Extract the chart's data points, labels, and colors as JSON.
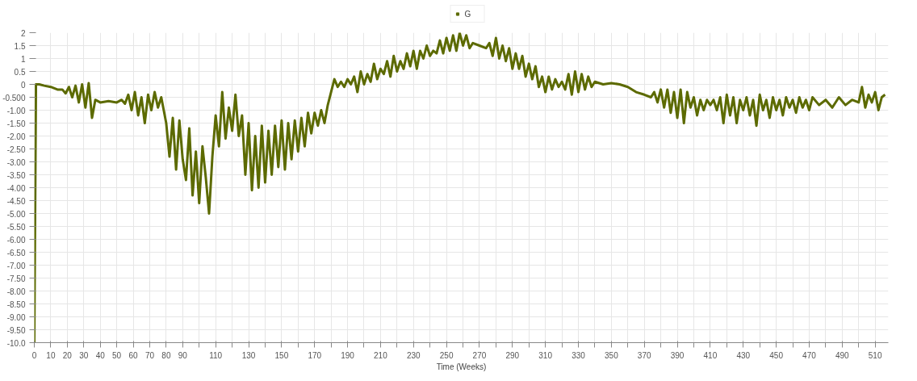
{
  "chart_data": {
    "type": "line",
    "xlabel": "Time (Weeks)",
    "xlim": [
      0,
      518
    ],
    "ylim": [
      -10,
      2
    ],
    "xticks": [
      0,
      10,
      20,
      30,
      40,
      50,
      60,
      70,
      80,
      90,
      {
        "value": 100,
        "label": null
      },
      110,
      {
        "value": 120,
        "label": null
      },
      130,
      {
        "value": 140,
        "label": null
      },
      150,
      {
        "value": 160,
        "label": null
      },
      170,
      {
        "value": 180,
        "label": null
      },
      190,
      {
        "value": 200,
        "label": null
      },
      210,
      {
        "value": 220,
        "label": null
      },
      230,
      {
        "value": 240,
        "label": null
      },
      250,
      {
        "value": 260,
        "label": null
      },
      270,
      {
        "value": 280,
        "label": null
      },
      290,
      {
        "value": 300,
        "label": null
      },
      310,
      {
        "value": 320,
        "label": null
      },
      330,
      {
        "value": 340,
        "label": null
      },
      350,
      {
        "value": 360,
        "label": null
      },
      370,
      {
        "value": 380,
        "label": null
      },
      390,
      {
        "value": 400,
        "label": null
      },
      410,
      {
        "value": 420,
        "label": null
      },
      430,
      {
        "value": 440,
        "label": null
      },
      450,
      {
        "value": 460,
        "label": null
      },
      470,
      {
        "value": 480,
        "label": null
      },
      490,
      {
        "value": 500,
        "label": null
      },
      510
    ],
    "yticks": [
      2,
      1.5,
      1,
      0.5,
      0,
      {
        "value": -0.5,
        "label": "-0.500"
      },
      {
        "value": -1,
        "label": "-1.00"
      },
      {
        "value": -1.5,
        "label": "-1.50"
      },
      {
        "value": -2,
        "label": "-2.00"
      },
      {
        "value": -2.5,
        "label": "-2.50"
      },
      {
        "value": -3,
        "label": "-3.00"
      },
      {
        "value": -3.5,
        "label": "-3.50"
      },
      {
        "value": -4,
        "label": "-4.00"
      },
      {
        "value": -4.5,
        "label": "-4.50"
      },
      {
        "value": -5,
        "label": "-5.00"
      },
      {
        "value": -5.5,
        "label": "-5.50"
      },
      {
        "value": -6,
        "label": "-6.00"
      },
      {
        "value": -6.5,
        "label": "-6.50"
      },
      {
        "value": -7,
        "label": "-7.00"
      },
      {
        "value": -7.5,
        "label": "-7.50"
      },
      {
        "value": -8,
        "label": "-8.00"
      },
      {
        "value": -8.5,
        "label": "-8.50"
      },
      {
        "value": -9,
        "label": "-9.00"
      },
      {
        "value": -9.5,
        "label": "-9.50"
      },
      {
        "value": -10,
        "label": "-10.0"
      }
    ],
    "grid": true,
    "legend": "top",
    "marker": "none",
    "line_style": "solid",
    "series": [
      {
        "name": "G",
        "color": "#5c6a00",
        "x": [
          0,
          1,
          3,
          6,
          10,
          14,
          17,
          19,
          21,
          23,
          25,
          27,
          29,
          31,
          33,
          35,
          37,
          40,
          45,
          50,
          53,
          55,
          57,
          59,
          61,
          63,
          65,
          67,
          69,
          71,
          73,
          75,
          77,
          80,
          82,
          84,
          86,
          88,
          90,
          92,
          94,
          96,
          98,
          100,
          102,
          104,
          106,
          108,
          110,
          112,
          114,
          116,
          118,
          120,
          122,
          124,
          126,
          128,
          130,
          132,
          134,
          136,
          138,
          140,
          142,
          144,
          146,
          148,
          150,
          152,
          154,
          156,
          158,
          160,
          162,
          164,
          166,
          168,
          170,
          172,
          174,
          176,
          178,
          180,
          182,
          184,
          186,
          188,
          190,
          192,
          194,
          196,
          198,
          200,
          202,
          204,
          206,
          208,
          210,
          212,
          214,
          216,
          218,
          220,
          222,
          224,
          226,
          228,
          230,
          232,
          234,
          236,
          238,
          240,
          242,
          244,
          246,
          248,
          250,
          252,
          254,
          256,
          258,
          260,
          262,
          264,
          266,
          270,
          274,
          276,
          278,
          280,
          282,
          284,
          286,
          288,
          290,
          292,
          294,
          296,
          298,
          300,
          302,
          304,
          306,
          308,
          310,
          312,
          314,
          316,
          318,
          320,
          322,
          324,
          326,
          328,
          330,
          332,
          334,
          336,
          338,
          340,
          345,
          350,
          355,
          360,
          365,
          370,
          374,
          376,
          378,
          380,
          382,
          384,
          386,
          388,
          390,
          392,
          394,
          396,
          398,
          400,
          402,
          404,
          406,
          408,
          410,
          412,
          414,
          416,
          418,
          420,
          422,
          424,
          426,
          428,
          430,
          432,
          434,
          436,
          438,
          440,
          442,
          444,
          446,
          448,
          450,
          452,
          454,
          456,
          458,
          460,
          462,
          464,
          466,
          468,
          470,
          472,
          476,
          480,
          484,
          488,
          492,
          496,
          500,
          502,
          504,
          506,
          508,
          510,
          512,
          514,
          516
        ],
        "values": [
          -10,
          0,
          0,
          -0.05,
          -0.1,
          -0.2,
          -0.2,
          -0.35,
          -0.1,
          -0.5,
          -0.05,
          -0.7,
          0,
          -0.9,
          0.05,
          -1.3,
          -0.6,
          -0.7,
          -0.65,
          -0.7,
          -0.6,
          -0.75,
          -0.4,
          -1.0,
          -0.3,
          -1.2,
          -0.5,
          -1.5,
          -0.4,
          -1.0,
          -0.3,
          -0.9,
          -0.5,
          -1.5,
          -2.8,
          -1.3,
          -3.3,
          -1.4,
          -2.9,
          -3.7,
          -1.7,
          -4.3,
          -2.6,
          -4.6,
          -2.4,
          -3.6,
          -5.0,
          -2.8,
          -1.2,
          -2.4,
          -0.3,
          -2.1,
          -0.9,
          -1.8,
          -0.4,
          -2.0,
          -1.2,
          -3.5,
          -1.5,
          -4.1,
          -2.0,
          -4.0,
          -1.6,
          -3.8,
          -1.8,
          -3.5,
          -1.6,
          -3.2,
          -1.4,
          -3.3,
          -1.5,
          -2.9,
          -1.4,
          -2.6,
          -1.3,
          -2.4,
          -1.1,
          -1.9,
          -1.1,
          -1.6,
          -1.0,
          -1.5,
          -0.8,
          -0.3,
          0.2,
          -0.1,
          0.1,
          -0.1,
          0.2,
          0.0,
          0.3,
          -0.3,
          0.5,
          0.0,
          0.4,
          0.1,
          0.8,
          0.2,
          0.6,
          0.4,
          0.9,
          0.3,
          1.1,
          0.5,
          0.9,
          0.6,
          1.2,
          0.7,
          1.3,
          0.6,
          1.3,
          1.0,
          1.5,
          1.1,
          1.3,
          1.2,
          1.7,
          1.2,
          1.8,
          1.3,
          1.9,
          1.3,
          2.0,
          1.5,
          1.9,
          1.4,
          1.6,
          1.5,
          1.4,
          1.6,
          1.1,
          1.8,
          1.0,
          1.5,
          0.9,
          1.4,
          0.6,
          1.2,
          0.6,
          1.1,
          0.3,
          0.8,
          0.2,
          0.7,
          -0.1,
          0.3,
          -0.3,
          0.3,
          -0.2,
          0.2,
          -0.1,
          0.1,
          -0.2,
          0.4,
          -0.4,
          0.5,
          -0.3,
          0.4,
          -0.2,
          0.3,
          -0.1,
          0.1,
          0.0,
          0.05,
          0.0,
          -0.1,
          -0.3,
          -0.4,
          -0.5,
          -0.3,
          -0.7,
          -0.2,
          -0.9,
          -0.2,
          -1.1,
          -0.3,
          -1.3,
          -0.2,
          -1.5,
          -0.3,
          -0.9,
          -0.5,
          -1.2,
          -0.6,
          -1.0,
          -0.6,
          -0.8,
          -0.6,
          -1.0,
          -0.5,
          -1.5,
          -0.4,
          -1.2,
          -0.5,
          -1.5,
          -0.6,
          -1.0,
          -0.5,
          -1.2,
          -0.6,
          -1.6,
          -0.4,
          -1.0,
          -0.6,
          -1.3,
          -0.5,
          -1.0,
          -0.6,
          -1.2,
          -0.5,
          -0.9,
          -0.6,
          -1.1,
          -0.5,
          -0.9,
          -0.6,
          -1.0,
          -0.5,
          -0.8,
          -0.6,
          -0.9,
          -0.5,
          -0.8,
          -0.6,
          -0.7,
          -0.1,
          -0.9,
          -0.4,
          -0.7,
          -0.3,
          -1.0,
          -0.5,
          -0.4
        ]
      }
    ]
  }
}
